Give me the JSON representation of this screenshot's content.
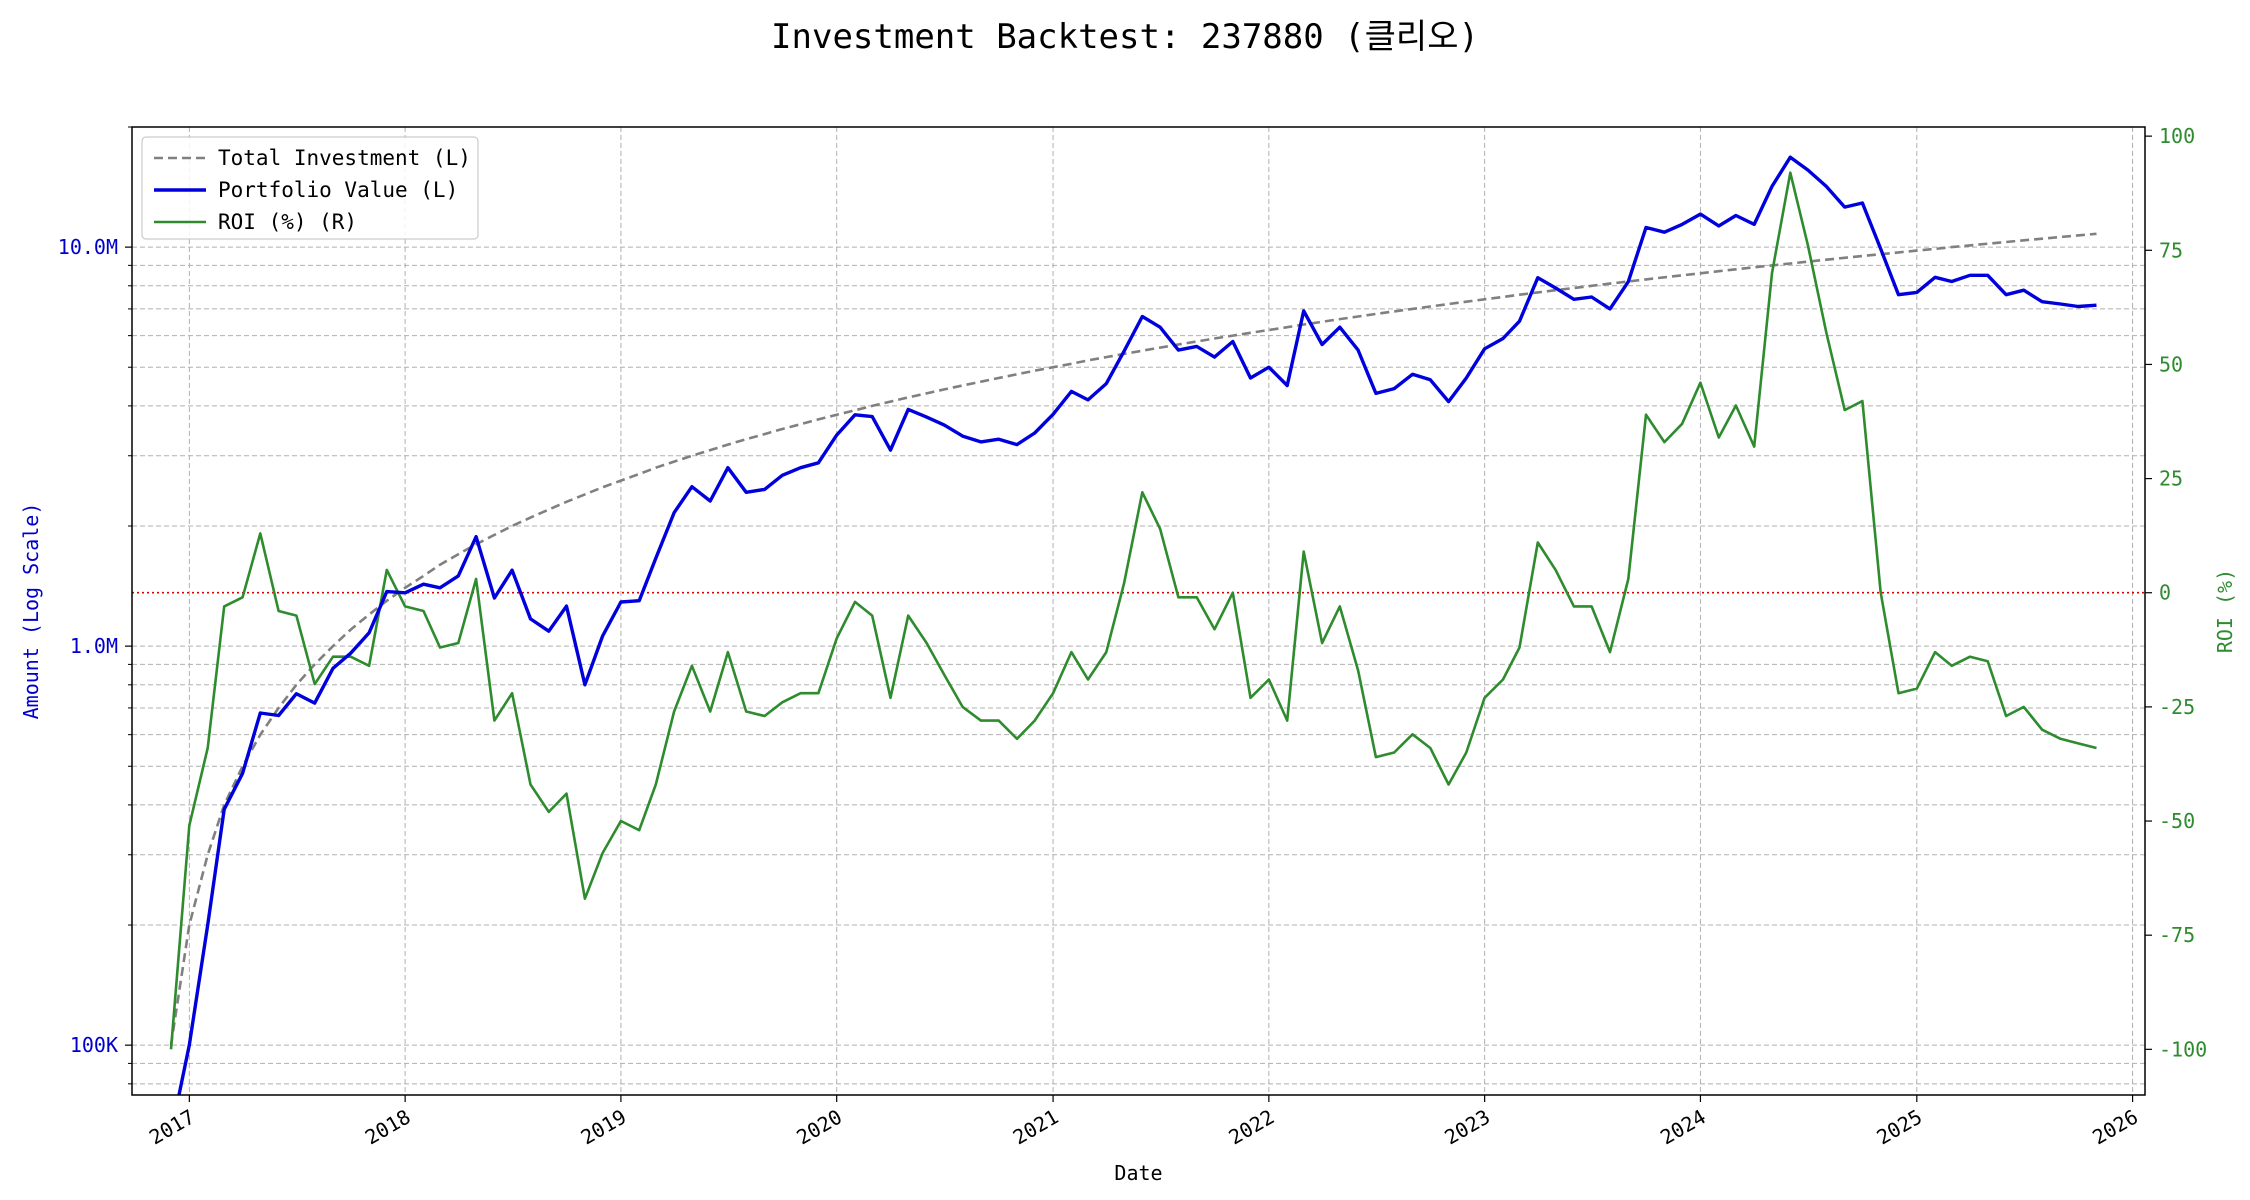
{
  "chart_data": {
    "type": "line",
    "title": "Investment Backtest: 237880 (클리오)",
    "xlabel": "Date",
    "ylabel_left": "Amount (Log Scale)",
    "ylabel_right": "ROI (%)",
    "left_scale": "log",
    "left_ylim": [
      75000,
      20000000
    ],
    "right_ylim": [
      -110,
      102
    ],
    "xlim": [
      "2016-09-26",
      "2026-01-22"
    ],
    "grid": true,
    "legend_position": "top-left",
    "x_ticks": [
      "2017",
      "2018",
      "2019",
      "2020",
      "2021",
      "2022",
      "2023",
      "2024",
      "2025",
      "2026"
    ],
    "left_ticks": [
      {
        "value": 100000,
        "label": "100K"
      },
      {
        "value": 1000000,
        "label": "1.0M"
      },
      {
        "value": 10000000,
        "label": "10.0M"
      }
    ],
    "right_ticks": [
      -100,
      -75,
      -50,
      -25,
      0,
      25,
      50,
      75,
      100
    ],
    "colors": {
      "total_investment": "#808080",
      "portfolio_value": "#0000dd",
      "roi": "#2e8b2e",
      "zero_line": "#dd0000",
      "left_axis_text": "#0000cc",
      "right_axis_text": "#2e8b2e"
    },
    "reference_line": {
      "axis": "right",
      "value": 0,
      "style": "dotted"
    },
    "dates": [
      "2016-12-01",
      "2017-01-01",
      "2017-02-01",
      "2017-03-01",
      "2017-04-01",
      "2017-05-01",
      "2017-06-01",
      "2017-07-01",
      "2017-08-01",
      "2017-09-01",
      "2017-10-01",
      "2017-11-01",
      "2017-12-01",
      "2018-01-01",
      "2018-02-01",
      "2018-03-01",
      "2018-04-01",
      "2018-05-01",
      "2018-06-01",
      "2018-07-01",
      "2018-08-01",
      "2018-09-01",
      "2018-10-01",
      "2018-11-01",
      "2018-12-01",
      "2019-01-01",
      "2019-02-01",
      "2019-03-01",
      "2019-04-01",
      "2019-05-01",
      "2019-06-01",
      "2019-07-01",
      "2019-08-01",
      "2019-09-01",
      "2019-10-01",
      "2019-11-01",
      "2019-12-01",
      "2020-01-01",
      "2020-02-01",
      "2020-03-01",
      "2020-04-01",
      "2020-05-01",
      "2020-06-01",
      "2020-07-01",
      "2020-08-01",
      "2020-09-01",
      "2020-10-01",
      "2020-11-01",
      "2020-12-01",
      "2021-01-01",
      "2021-02-01",
      "2021-03-01",
      "2021-04-01",
      "2021-05-01",
      "2021-06-01",
      "2021-07-01",
      "2021-08-01",
      "2021-09-01",
      "2021-10-01",
      "2021-11-01",
      "2021-12-01",
      "2022-01-01",
      "2022-02-01",
      "2022-03-01",
      "2022-04-01",
      "2022-05-01",
      "2022-06-01",
      "2022-07-01",
      "2022-08-01",
      "2022-09-01",
      "2022-10-01",
      "2022-11-01",
      "2022-12-01",
      "2023-01-01",
      "2023-02-01",
      "2023-03-01",
      "2023-04-01",
      "2023-05-01",
      "2023-06-01",
      "2023-07-01",
      "2023-08-01",
      "2023-09-01",
      "2023-10-01",
      "2023-11-01",
      "2023-12-01",
      "2024-01-01",
      "2024-02-01",
      "2024-03-01",
      "2024-04-01",
      "2024-05-01",
      "2024-06-01",
      "2024-07-01",
      "2024-08-01",
      "2024-09-01",
      "2024-10-01",
      "2024-11-01",
      "2024-12-01",
      "2025-01-01",
      "2025-02-01",
      "2025-03-01",
      "2025-04-01",
      "2025-05-01",
      "2025-06-01",
      "2025-07-01",
      "2025-08-01",
      "2025-09-01",
      "2025-10-01",
      "2025-11-01"
    ],
    "series": [
      {
        "name": "Total Investment (L)",
        "style": "dashed",
        "axis": "left",
        "values": [
          100000,
          200000,
          300000,
          400000,
          500000,
          600000,
          700000,
          800000,
          900000,
          1000000,
          1100000,
          1200000,
          1300000,
          1400000,
          1500000,
          1600000,
          1700000,
          1800000,
          1900000,
          2000000,
          2100000,
          2200000,
          2300000,
          2400000,
          2500000,
          2600000,
          2700000,
          2800000,
          2900000,
          3000000,
          3100000,
          3200000,
          3300000,
          3400000,
          3500000,
          3600000,
          3700000,
          3800000,
          3900000,
          4000000,
          4100000,
          4200000,
          4300000,
          4400000,
          4500000,
          4600000,
          4700000,
          4800000,
          4900000,
          5000000,
          5100000,
          5200000,
          5300000,
          5400000,
          5500000,
          5600000,
          5700000,
          5800000,
          5900000,
          6000000,
          6100000,
          6200000,
          6300000,
          6400000,
          6500000,
          6600000,
          6700000,
          6800000,
          6900000,
          7000000,
          7100000,
          7200000,
          7300000,
          7400000,
          7500000,
          7600000,
          7700000,
          7800000,
          7900000,
          8000000,
          8100000,
          8200000,
          8300000,
          8400000,
          8500000,
          8600000,
          8700000,
          8800000,
          8900000,
          9000000,
          9100000,
          9200000,
          9300000,
          9400000,
          9500000,
          9600000,
          9700000,
          9800000,
          9900000,
          10000000,
          10100000,
          10200000,
          10300000,
          10400000,
          10500000,
          10600000,
          10700000,
          10800000
        ]
      },
      {
        "name": "Portfolio Value (L)",
        "style": "solid",
        "axis": "left",
        "values": [
          60000,
          100000,
          200000,
          390000,
          480000,
          680000,
          670000,
          760000,
          720000,
          880000,
          960000,
          1080000,
          1370000,
          1360000,
          1430000,
          1400000,
          1500000,
          1880000,
          1320000,
          1550000,
          1170000,
          1090000,
          1260000,
          800000,
          1060000,
          1290000,
          1300000,
          1660000,
          2160000,
          2510000,
          2310000,
          2800000,
          2430000,
          2470000,
          2680000,
          2800000,
          2880000,
          3380000,
          3800000,
          3760000,
          3100000,
          3920000,
          3750000,
          3580000,
          3360000,
          3250000,
          3300000,
          3200000,
          3420000,
          3810000,
          4350000,
          4140000,
          4550000,
          5480000,
          6700000,
          6300000,
          5520000,
          5640000,
          5300000,
          5800000,
          4700000,
          5000000,
          4500000,
          6920000,
          5700000,
          6300000,
          5520000,
          4300000,
          4420000,
          4800000,
          4650000,
          4100000,
          4700000,
          5560000,
          5900000,
          6520000,
          8380000,
          7900000,
          7400000,
          7500000,
          7000000,
          8190000,
          11200000,
          10900000,
          11400000,
          12100000,
          11300000,
          12000000,
          11400000,
          14200000,
          16800000,
          15600000,
          14200000,
          12600000,
          12900000,
          9900000,
          7600000,
          7700000,
          8400000,
          8200000,
          8500000,
          8500000,
          7600000,
          7800000,
          7300000,
          7200000,
          7100000,
          7150000
        ]
      },
      {
        "name": "ROI (%) (R)",
        "style": "solid",
        "axis": "right",
        "values": [
          -100,
          -51,
          -34,
          -3,
          -1,
          13,
          -4,
          -5,
          -20,
          -14,
          -14,
          -16,
          5,
          -3,
          -4,
          -12,
          -11,
          3,
          -28,
          -22,
          -42,
          -48,
          -44,
          -67,
          -57,
          -50,
          -52,
          -42,
          -26,
          -16,
          -26,
          -13,
          -26,
          -27,
          -24,
          -22,
          -22,
          -10,
          -2,
          -5,
          -23,
          -5,
          -11,
          -18,
          -25,
          -28,
          -28,
          -32,
          -28,
          -22,
          -13,
          -19,
          -13,
          2,
          22,
          14,
          -1,
          -1,
          -8,
          0,
          -23,
          -19,
          -28,
          9,
          -11,
          -3,
          -17,
          -36,
          -35,
          -31,
          -34,
          -42,
          -35,
          -23,
          -19,
          -12,
          11,
          5,
          -3,
          -3,
          -13,
          3,
          39,
          33,
          37,
          46,
          34,
          41,
          32,
          70,
          92,
          76,
          57,
          40,
          42,
          0,
          -22,
          -21,
          -13,
          -16,
          -14,
          -15,
          -27,
          -25,
          -30,
          -32,
          -33,
          -34
        ]
      }
    ]
  }
}
